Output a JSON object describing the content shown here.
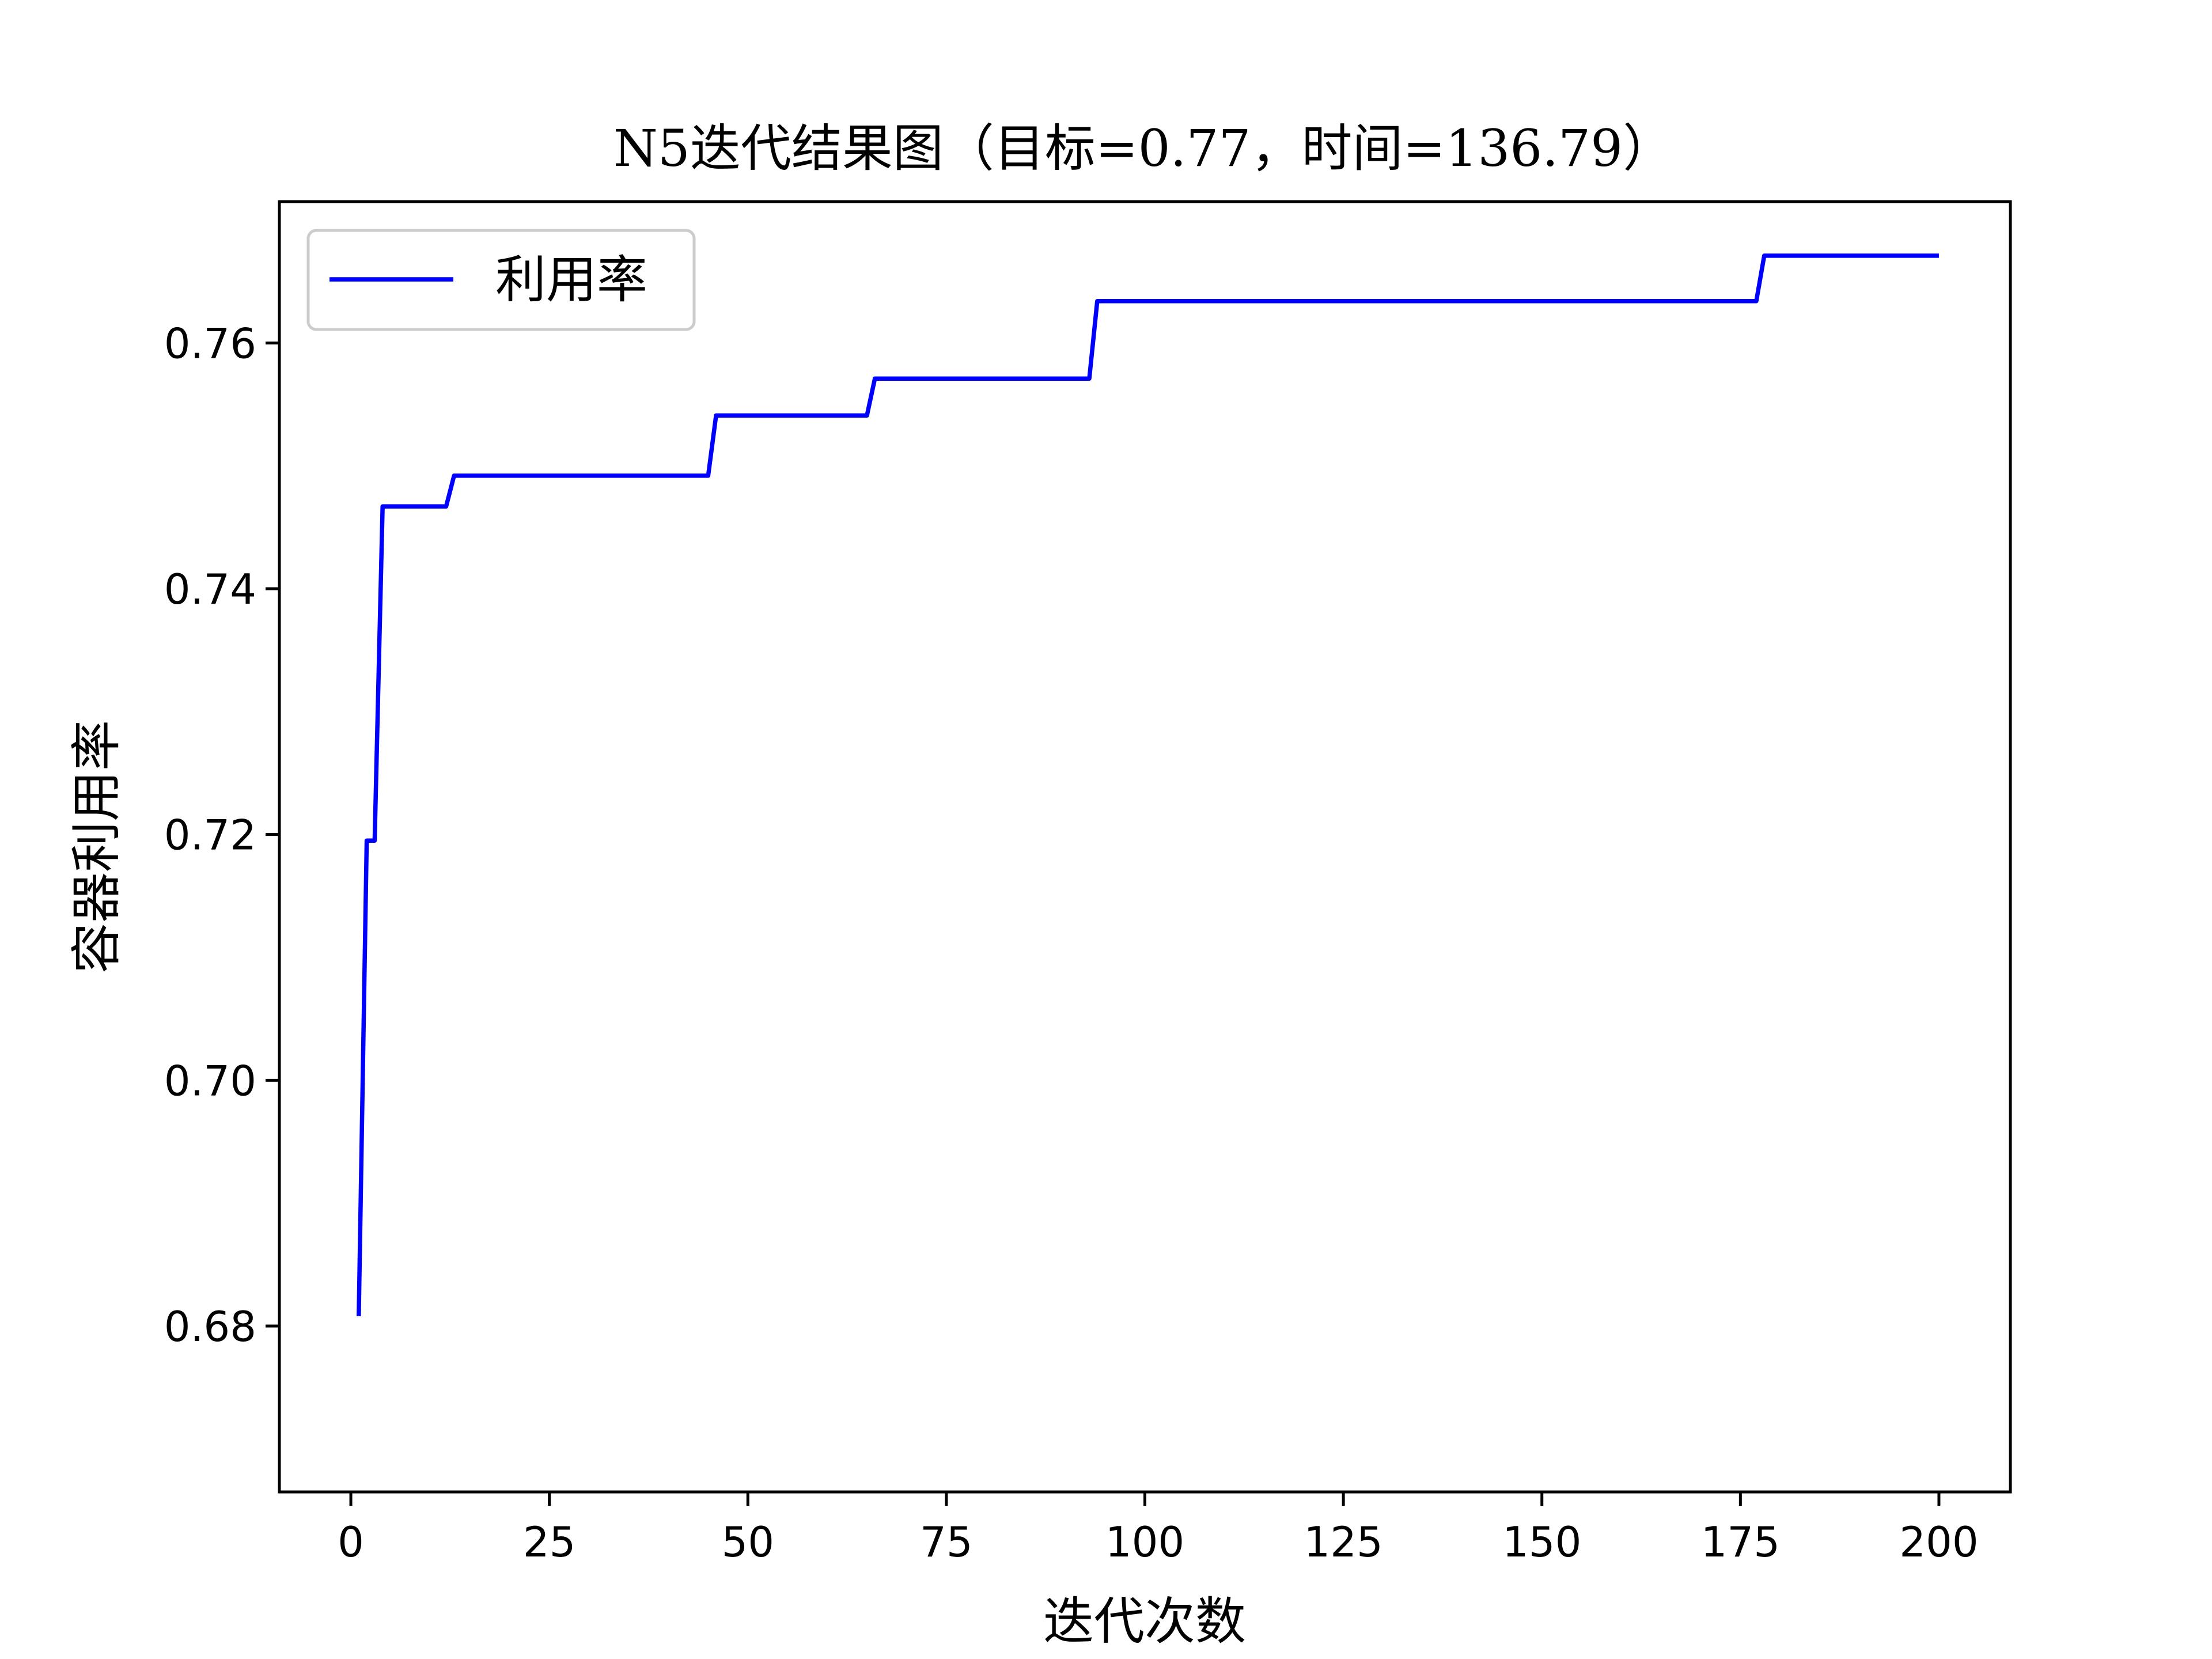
{
  "chart_data": {
    "type": "line",
    "title": "N5迭代结果图（目标=0.77，时间=136.79）",
    "xlabel": "迭代次数",
    "ylabel": "容器利用率",
    "xlim": [
      -9,
      209
    ],
    "ylim": [
      0.6665,
      0.7715
    ],
    "xticks": [
      0,
      25,
      50,
      75,
      100,
      125,
      150,
      175,
      200
    ],
    "xtick_labels": [
      "0",
      "25",
      "50",
      "75",
      "100",
      "125",
      "150",
      "175",
      "200"
    ],
    "yticks": [
      0.68,
      0.7,
      0.72,
      0.74,
      0.76
    ],
    "ytick_labels": [
      "0.68",
      "0.70",
      "0.72",
      "0.74",
      "0.76"
    ],
    "grid": false,
    "legend": {
      "position": "upper-left",
      "entries": [
        "利用率"
      ]
    },
    "series": [
      {
        "name": "利用率",
        "color": "#0000ff",
        "x": [
          1,
          2,
          3,
          4,
          12,
          13,
          45,
          46,
          65,
          66,
          93,
          94,
          177,
          178,
          200
        ],
        "y": [
          0.6808,
          0.7195,
          0.7195,
          0.7467,
          0.7467,
          0.7492,
          0.7492,
          0.7541,
          0.7541,
          0.7571,
          0.7571,
          0.7634,
          0.7634,
          0.7671,
          0.7671
        ]
      }
    ]
  }
}
